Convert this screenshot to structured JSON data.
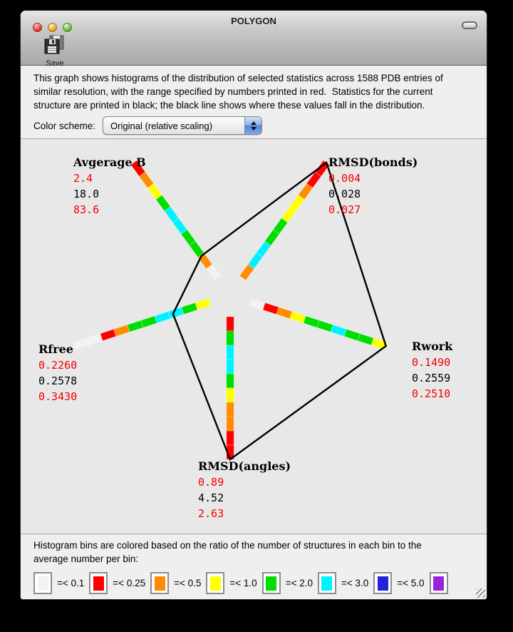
{
  "window": {
    "title": "POLYGON",
    "toolbar": {
      "save_label": "Save"
    }
  },
  "description": {
    "line1": "This graph shows histograms of the distribution of selected statistics across 1588 PDB entries of",
    "line2": "similar resolution, with the range specified by numbers printed in red.  Statistics for the current",
    "line3": "structure are printed in black; the black line shows where these values fall in the distribution."
  },
  "color_scheme": {
    "label": "Color scheme:",
    "selected": "Original (relative scaling)"
  },
  "chart_data": {
    "type": "radar-histogram-polygon",
    "title": "POLYGON plot of model statistics vs. 1588 PDB entries of similar resolution",
    "palette": {
      "white": "#f2f2f2",
      "red": "#ff0000",
      "orange": "#ff8c00",
      "yellow": "#ffff00",
      "green": "#00dd00",
      "cyan": "#00f2ff",
      "blue": "#2222dd",
      "purple": "#9a22dd"
    },
    "axes": [
      {
        "label": "Avgerage B",
        "min": "2.4",
        "value": "18.0",
        "max": "83.6",
        "min_num": 2.4,
        "value_num": 18.0,
        "max_num": 83.6,
        "angle_deg": 126,
        "bins_inner_to_outer": [
          "white",
          "orange",
          "green",
          "green",
          "cyan",
          "cyan",
          "green",
          "yellow",
          "orange",
          "red"
        ]
      },
      {
        "label": "RMSD(bonds)",
        "min": "0.004",
        "value": "0.028",
        "max": "0.027",
        "min_num": 0.004,
        "value_num": 0.028,
        "max_num": 0.027,
        "angle_deg": 54,
        "bins_inner_to_outer": [
          "orange",
          "cyan",
          "cyan",
          "green",
          "green",
          "yellow",
          "yellow",
          "orange",
          "red",
          "red"
        ]
      },
      {
        "label": "Rwork",
        "min": "0.1490",
        "value": "0.2559",
        "max": "0.2510",
        "min_num": 0.149,
        "value_num": 0.2559,
        "max_num": 0.251,
        "angle_deg": -18,
        "bins_inner_to_outer": [
          "white",
          "red",
          "orange",
          "yellow",
          "green",
          "green",
          "cyan",
          "green",
          "green",
          "yellow"
        ]
      },
      {
        "label": "RMSD(angles)",
        "min": "0.89",
        "value": "4.52",
        "max": "2.63",
        "min_num": 0.89,
        "value_num": 4.52,
        "max_num": 2.63,
        "angle_deg": -90,
        "bins_inner_to_outer": [
          "red",
          "green",
          "cyan",
          "cyan",
          "green",
          "yellow",
          "orange",
          "orange",
          "red",
          "red"
        ]
      },
      {
        "label": "Rfree",
        "min": "0.2260",
        "value": "0.2578",
        "max": "0.3430",
        "min_num": 0.226,
        "value_num": 0.2578,
        "max_num": 0.343,
        "angle_deg": 198,
        "bins_inner_to_outer": [
          "yellow",
          "green",
          "cyan",
          "cyan",
          "green",
          "green",
          "orange",
          "red",
          "white",
          "white"
        ]
      }
    ]
  },
  "legend": {
    "line1": "Histogram bins are colored based on the ratio of the number of structures in each bin to the",
    "line2": "average number per bin:",
    "bins": [
      {
        "color": "white",
        "label": "=< 0.1"
      },
      {
        "color": "red",
        "label": "=< 0.25"
      },
      {
        "color": "orange",
        "label": "=< 0.5"
      },
      {
        "color": "yellow",
        "label": "=< 1.0"
      },
      {
        "color": "green",
        "label": "=< 2.0"
      },
      {
        "color": "cyan",
        "label": "=< 3.0"
      },
      {
        "color": "blue",
        "label": "=< 5.0"
      },
      {
        "color": "purple",
        "label": ""
      }
    ]
  }
}
